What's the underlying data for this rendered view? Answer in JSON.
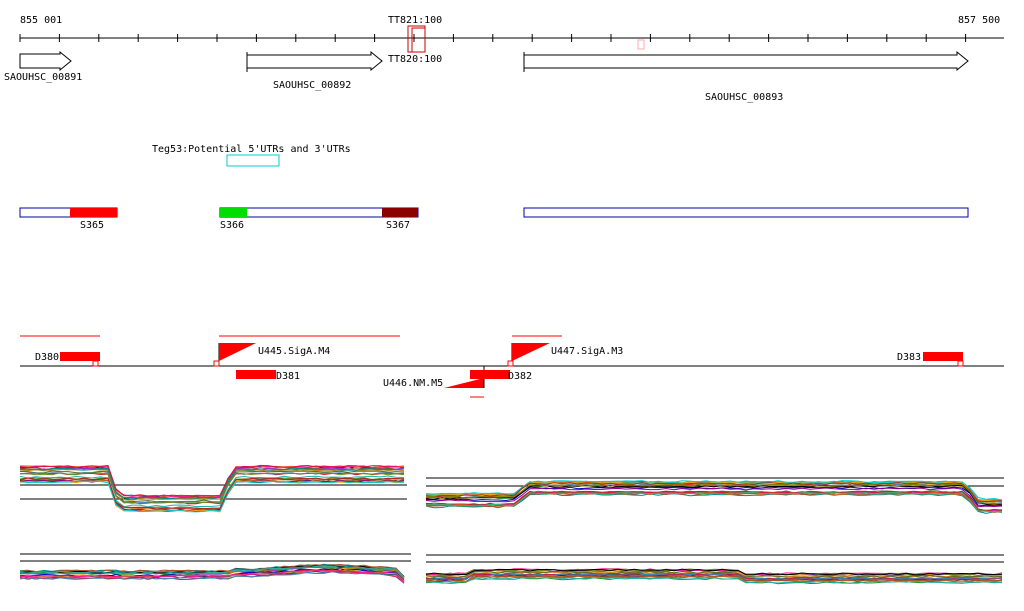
{
  "ruler": {
    "start_label": "855 001",
    "end_label": "857 500"
  },
  "terminators": [
    {
      "label": "TT821:100",
      "pos": "top"
    },
    {
      "label": "TT820:100",
      "pos": "bottom"
    }
  ],
  "genes": [
    {
      "id": "SAOUHSC_00891"
    },
    {
      "id": "SAOUHSC_00892"
    },
    {
      "id": "SAOUHSC_00893"
    }
  ],
  "annotation": {
    "label": "Teg53:Potential 5'UTRs and 3'UTRs",
    "color": "#00cccc"
  },
  "segments": [
    {
      "label": "S365",
      "color": "#ff0000"
    },
    {
      "label": "S366",
      "color": "#00dd00"
    },
    {
      "label": "S367",
      "color": "#8b0000"
    }
  ],
  "features": [
    {
      "label": "D380"
    },
    {
      "label": "U445.SigA.M4"
    },
    {
      "label": "D381"
    },
    {
      "label": "U446.NM.M5"
    },
    {
      "label": "D382"
    },
    {
      "label": "U447.SigA.M3"
    },
    {
      "label": "D383"
    }
  ],
  "colors": {
    "outline": "#0000aa",
    "feature": "#ff0000",
    "terminator": "#cc0000"
  }
}
